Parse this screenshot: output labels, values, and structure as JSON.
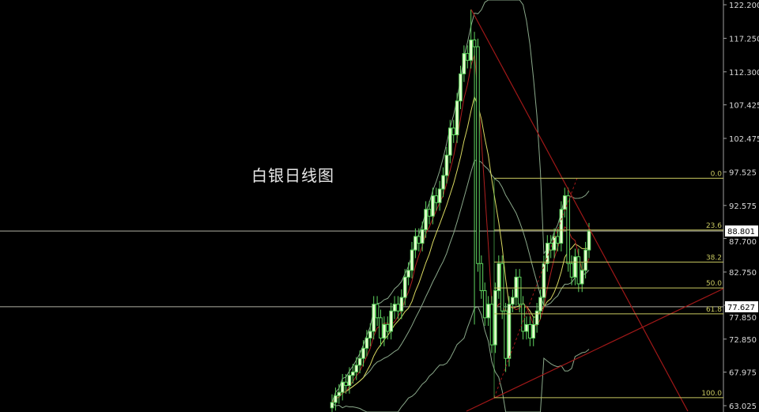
{
  "chart_data": {
    "type": "candlestick",
    "title": "白银日线图",
    "ylim": [
      63.025,
      122.2
    ],
    "y_ticks": [
      "122.200",
      "117.250",
      "112.300",
      "107.425",
      "102.475",
      "97.525",
      "92.575",
      "87.700",
      "82.750",
      "77.850",
      "72.850",
      "67.975",
      "63.025"
    ],
    "y_tick_values": [
      122.2,
      117.25,
      112.3,
      107.425,
      102.475,
      97.525,
      92.575,
      87.7,
      82.75,
      77.85,
      72.85,
      67.975,
      63.025
    ],
    "price_labels": [
      {
        "label": "88.801",
        "value": 88.801
      },
      {
        "label": "77.627",
        "value": 77.627
      }
    ],
    "fibonacci": {
      "high": 96.6,
      "low": 64.2,
      "levels": [
        {
          "label": "0.0",
          "ratio": 0
        },
        {
          "label": "23.6",
          "ratio": 0.236
        },
        {
          "label": "38.2",
          "ratio": 0.382
        },
        {
          "label": "50.0",
          "ratio": 0.5
        },
        {
          "label": "61.8",
          "ratio": 0.618
        },
        {
          "label": "100.0",
          "ratio": 1
        }
      ]
    },
    "closes": [
      63.5,
      64.5,
      65,
      66.5,
      66,
      67.5,
      68,
      69,
      70,
      71.5,
      73,
      74,
      78,
      76,
      73,
      75,
      74,
      77,
      78,
      77,
      79,
      82,
      83,
      86,
      88,
      87,
      89,
      92,
      91,
      94,
      93,
      95,
      97,
      100,
      104,
      103,
      108,
      112,
      115,
      114,
      117,
      116,
      84,
      80,
      76,
      78,
      72,
      80,
      84,
      77,
      70,
      78,
      79,
      82,
      78,
      74,
      75,
      73,
      75,
      77,
      79,
      84,
      87,
      86,
      88,
      87,
      92,
      94,
      84,
      82,
      85,
      81,
      83,
      86,
      88.8
    ],
    "peak": 121.5,
    "colors": {
      "candle": "#5fd35f",
      "candle_fill": "#e8ffd0",
      "ma_fast": "#b02020",
      "ma_slow": "#d8d860",
      "band": "#8aa88a",
      "trend": "#a01818",
      "fib": "#c8c860",
      "hline": "#d0d0c0",
      "axis": "#a0a0a0"
    }
  }
}
